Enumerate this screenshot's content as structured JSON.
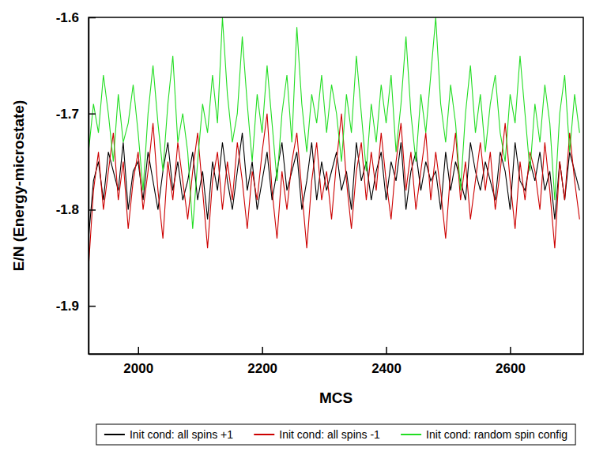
{
  "chart_data": {
    "type": "line",
    "x_label": "MCS",
    "y_label": "E/N (Energy-microstate)",
    "xlim": [
      1920,
      2718
    ],
    "xticks": [
      2000,
      2200,
      2400,
      2600
    ],
    "ylim": [
      -1.95,
      -1.6
    ],
    "yticks": [
      -1.9,
      -1.8,
      -1.7,
      -1.6
    ],
    "grid": false,
    "legend": "bottom",
    "x": [
      1920,
      1928,
      1936,
      1944,
      1952,
      1960,
      1968,
      1976,
      1984,
      1992,
      2000,
      2008,
      2016,
      2024,
      2032,
      2040,
      2048,
      2056,
      2064,
      2072,
      2080,
      2088,
      2096,
      2104,
      2112,
      2120,
      2128,
      2136,
      2144,
      2152,
      2160,
      2168,
      2176,
      2184,
      2192,
      2200,
      2208,
      2216,
      2224,
      2232,
      2240,
      2248,
      2256,
      2264,
      2272,
      2280,
      2288,
      2296,
      2304,
      2312,
      2320,
      2328,
      2336,
      2344,
      2352,
      2360,
      2368,
      2376,
      2384,
      2392,
      2400,
      2408,
      2416,
      2424,
      2432,
      2440,
      2448,
      2456,
      2464,
      2472,
      2480,
      2488,
      2496,
      2504,
      2512,
      2520,
      2528,
      2536,
      2544,
      2552,
      2560,
      2568,
      2576,
      2584,
      2592,
      2600,
      2608,
      2616,
      2624,
      2632,
      2640,
      2648,
      2656,
      2664,
      2672,
      2680,
      2688,
      2696,
      2704,
      2712
    ],
    "series": [
      {
        "name": "Init cond: all spins +1",
        "color": "#000000",
        "values": [
          -1.83,
          -1.77,
          -1.75,
          -1.79,
          -1.74,
          -1.76,
          -1.78,
          -1.73,
          -1.8,
          -1.76,
          -1.75,
          -1.79,
          -1.74,
          -1.77,
          -1.8,
          -1.76,
          -1.73,
          -1.78,
          -1.75,
          -1.79,
          -1.77,
          -1.74,
          -1.79,
          -1.76,
          -1.81,
          -1.75,
          -1.78,
          -1.73,
          -1.77,
          -1.8,
          -1.76,
          -1.72,
          -1.78,
          -1.75,
          -1.8,
          -1.77,
          -1.74,
          -1.79,
          -1.76,
          -1.73,
          -1.78,
          -1.76,
          -1.74,
          -1.8,
          -1.77,
          -1.73,
          -1.79,
          -1.75,
          -1.78,
          -1.76,
          -1.74,
          -1.78,
          -1.76,
          -1.8,
          -1.73,
          -1.77,
          -1.75,
          -1.79,
          -1.76,
          -1.74,
          -1.79,
          -1.75,
          -1.77,
          -1.73,
          -1.8,
          -1.76,
          -1.74,
          -1.78,
          -1.75,
          -1.77,
          -1.76,
          -1.8,
          -1.74,
          -1.78,
          -1.75,
          -1.77,
          -1.79,
          -1.73,
          -1.76,
          -1.78,
          -1.75,
          -1.77,
          -1.79,
          -1.74,
          -1.76,
          -1.8,
          -1.73,
          -1.77,
          -1.78,
          -1.75,
          -1.77,
          -1.74,
          -1.78,
          -1.76,
          -1.81,
          -1.75,
          -1.79,
          -1.74,
          -1.76,
          -1.78
        ]
      },
      {
        "name": "Init cond: all spins -1",
        "color": "#cc0000",
        "values": [
          -1.86,
          -1.78,
          -1.74,
          -1.8,
          -1.76,
          -1.72,
          -1.79,
          -1.75,
          -1.82,
          -1.77,
          -1.74,
          -1.8,
          -1.76,
          -1.71,
          -1.78,
          -1.83,
          -1.75,
          -1.79,
          -1.73,
          -1.77,
          -1.81,
          -1.76,
          -1.72,
          -1.78,
          -1.84,
          -1.77,
          -1.74,
          -1.8,
          -1.75,
          -1.79,
          -1.73,
          -1.77,
          -1.82,
          -1.76,
          -1.79,
          -1.74,
          -1.7,
          -1.78,
          -1.83,
          -1.76,
          -1.8,
          -1.75,
          -1.72,
          -1.78,
          -1.84,
          -1.77,
          -1.73,
          -1.79,
          -1.76,
          -1.81,
          -1.75,
          -1.7,
          -1.77,
          -1.82,
          -1.76,
          -1.73,
          -1.79,
          -1.74,
          -1.78,
          -1.72,
          -1.77,
          -1.81,
          -1.75,
          -1.71,
          -1.78,
          -1.74,
          -1.8,
          -1.76,
          -1.72,
          -1.79,
          -1.74,
          -1.78,
          -1.83,
          -1.76,
          -1.72,
          -1.79,
          -1.75,
          -1.81,
          -1.77,
          -1.73,
          -1.78,
          -1.74,
          -1.8,
          -1.76,
          -1.71,
          -1.77,
          -1.82,
          -1.75,
          -1.79,
          -1.74,
          -1.76,
          -1.8,
          -1.73,
          -1.78,
          -1.84,
          -1.75,
          -1.79,
          -1.72,
          -1.77,
          -1.81
        ]
      },
      {
        "name": "Init cond: random spin config",
        "color": "#22dd22",
        "values": [
          -1.74,
          -1.69,
          -1.72,
          -1.66,
          -1.7,
          -1.75,
          -1.68,
          -1.73,
          -1.71,
          -1.67,
          -1.72,
          -1.78,
          -1.7,
          -1.65,
          -1.71,
          -1.76,
          -1.69,
          -1.64,
          -1.73,
          -1.7,
          -1.74,
          -1.82,
          -1.75,
          -1.69,
          -1.72,
          -1.66,
          -1.71,
          -1.6,
          -1.68,
          -1.73,
          -1.7,
          -1.62,
          -1.69,
          -1.75,
          -1.68,
          -1.72,
          -1.65,
          -1.71,
          -1.77,
          -1.7,
          -1.66,
          -1.73,
          -1.61,
          -1.69,
          -1.74,
          -1.68,
          -1.71,
          -1.66,
          -1.72,
          -1.67,
          -1.7,
          -1.75,
          -1.68,
          -1.72,
          -1.64,
          -1.7,
          -1.76,
          -1.69,
          -1.73,
          -1.67,
          -1.71,
          -1.66,
          -1.74,
          -1.69,
          -1.62,
          -1.7,
          -1.75,
          -1.68,
          -1.72,
          -1.66,
          -1.6,
          -1.69,
          -1.73,
          -1.67,
          -1.71,
          -1.78,
          -1.7,
          -1.65,
          -1.72,
          -1.68,
          -1.74,
          -1.69,
          -1.66,
          -1.72,
          -1.75,
          -1.68,
          -1.71,
          -1.64,
          -1.7,
          -1.76,
          -1.69,
          -1.73,
          -1.67,
          -1.71,
          -1.79,
          -1.7,
          -1.66,
          -1.74,
          -1.68,
          -1.72
        ]
      }
    ]
  }
}
